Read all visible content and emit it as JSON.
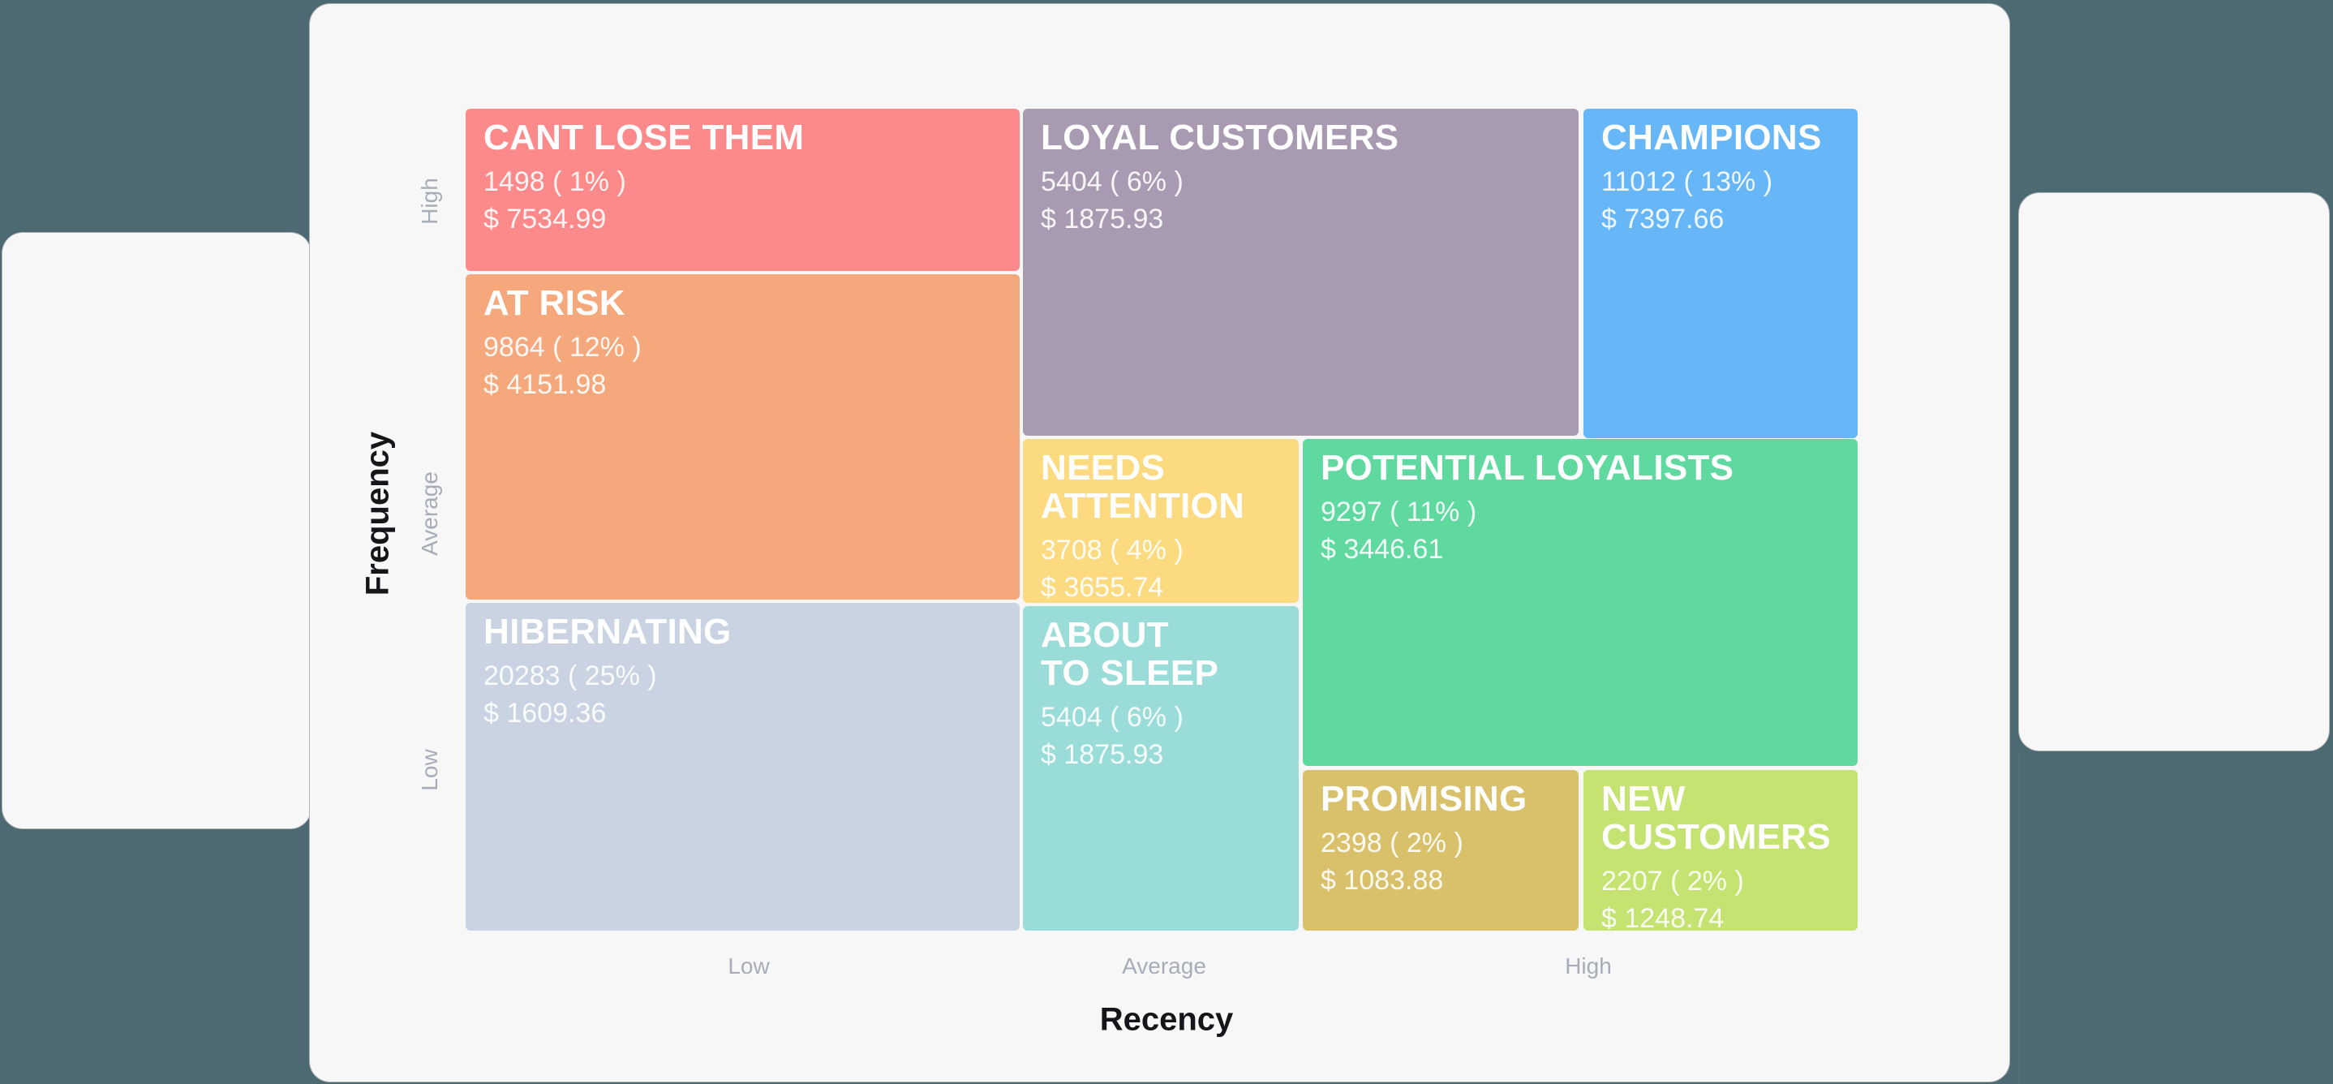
{
  "colors": {
    "background": "#4d6971",
    "card": "#f7f7f8",
    "axis_title": "#15161a",
    "tick_label": "#a7adb8",
    "segment_text": "#ffffff"
  },
  "axes": {
    "y_title": "Frequency",
    "y_ticks": [
      "High",
      "Average",
      "Low"
    ],
    "x_title": "Recency",
    "x_ticks": [
      "Low",
      "Average",
      "High"
    ]
  },
  "chart_data": {
    "type": "heatmap",
    "variant": "rfm-customer-segment-matrix",
    "x_axis": {
      "title": "Recency",
      "ticks": [
        "Low",
        "Average",
        "High"
      ]
    },
    "y_axis": {
      "title": "Frequency",
      "ticks": [
        "High",
        "Average",
        "Low"
      ]
    },
    "legend": "none",
    "segments": [
      {
        "name": "CANT LOSE THEM",
        "customers": 1498,
        "percent": 1,
        "count_label": "1498 ( 1% )",
        "monetary": 7534.99,
        "monetary_label": "$ 7534.99",
        "color": "#fc8a8a",
        "recency": "Low",
        "frequency": "High"
      },
      {
        "name": "LOYAL CUSTOMERS",
        "customers": 5404,
        "percent": 6,
        "count_label": "5404 ( 6% )",
        "monetary": 1875.93,
        "monetary_label": "$ 1875.93",
        "color": "#a89bb1",
        "recency": "Average",
        "frequency": "High"
      },
      {
        "name": "CHAMPIONS",
        "customers": 11012,
        "percent": 13,
        "count_label": "11012 ( 13% )",
        "monetary": 7397.66,
        "monetary_label": "$ 7397.66",
        "color": "#66b6f8",
        "recency": "High",
        "frequency": "High"
      },
      {
        "name": "AT RISK",
        "customers": 9864,
        "percent": 12,
        "count_label": "9864 ( 12% )",
        "monetary": 4151.98,
        "monetary_label": "$ 4151.98",
        "color": "#f5a87c",
        "recency": "Low",
        "frequency": "Average"
      },
      {
        "name": "NEEDS ATTENTION",
        "customers": 3708,
        "percent": 4,
        "count_label": "3708 ( 4% )",
        "monetary": 3655.74,
        "monetary_label": "$ 3655.74",
        "color": "#fcda80",
        "recency": "Average",
        "frequency": "Average"
      },
      {
        "name": "POTENTIAL LOYALISTS",
        "customers": 9297,
        "percent": 11,
        "count_label": "9297 ( 11% )",
        "monetary": 3446.61,
        "monetary_label": "$ 3446.61",
        "color": "#5fd9a0",
        "recency": "High",
        "frequency": "Average"
      },
      {
        "name": "HIBERNATING",
        "customers": 20283,
        "percent": 25,
        "count_label": "20283 ( 25% )",
        "monetary": 1609.36,
        "monetary_label": "$ 1609.36",
        "color": "#c9d3e2",
        "recency": "Low",
        "frequency": "Low"
      },
      {
        "name": "ABOUT TO SLEEP",
        "name_lines": [
          "ABOUT",
          "TO SLEEP"
        ],
        "customers": 5404,
        "percent": 6,
        "count_label": "5404 ( 6% )",
        "monetary": 1875.93,
        "monetary_label": "$ 1875.93",
        "color": "#99dcd8",
        "recency": "Average",
        "frequency": "Low"
      },
      {
        "name": "PROMISING",
        "customers": 2398,
        "percent": 2,
        "count_label": "2398 ( 2% )",
        "monetary": 1083.88,
        "monetary_label": "$ 1083.88",
        "color": "#d9c16b",
        "recency": "High",
        "frequency": "Low"
      },
      {
        "name": "NEW CUSTOMERS",
        "customers": 2207,
        "percent": 2,
        "count_label": "2207 ( 2% )",
        "monetary": 1248.74,
        "monetary_label": "$ 1248.74",
        "color": "#c4e371",
        "recency": "High",
        "frequency": "Low"
      }
    ]
  }
}
